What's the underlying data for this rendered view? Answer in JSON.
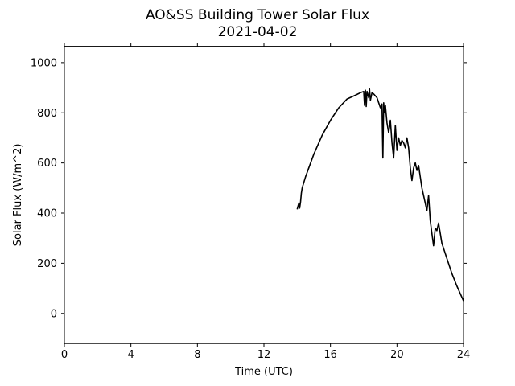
{
  "chart_data": {
    "type": "line",
    "title": "AO&SS Building Tower Solar Flux",
    "subtitle": "2021-04-02",
    "xlabel": "Time (UTC)",
    "ylabel": "Solar Flux (W/m^2)",
    "xlim": [
      0,
      24
    ],
    "ylim": [
      -120,
      1065
    ],
    "x_ticks": [
      0,
      4,
      8,
      12,
      16,
      20,
      24
    ],
    "x_tick_labels": [
      "0",
      "4",
      "8",
      "12",
      "16",
      "20",
      "24"
    ],
    "y_ticks": [
      0,
      200,
      400,
      600,
      800,
      1000
    ],
    "y_tick_labels": [
      "0",
      "200",
      "400",
      "600",
      "800",
      "1000"
    ],
    "grid": false,
    "line_color": "#000000",
    "series": [
      {
        "x": [
          14.0,
          14.1,
          14.15,
          14.2,
          14.25,
          14.3,
          14.5,
          15.0,
          15.5,
          16.0,
          16.5,
          17.0,
          17.5,
          17.8,
          18.0,
          18.05,
          18.1,
          18.15,
          18.2,
          18.3,
          18.35,
          18.4,
          18.5,
          18.6,
          18.8,
          18.9,
          19.0,
          19.1,
          19.15,
          19.2,
          19.25,
          19.3,
          19.4,
          19.5,
          19.6,
          19.7,
          19.8,
          19.9,
          20.0,
          20.1,
          20.2,
          20.3,
          20.4,
          20.5,
          20.6,
          20.7,
          20.8,
          20.9,
          21.0,
          21.1,
          21.2,
          21.3,
          21.5,
          21.6,
          21.8,
          21.9,
          22.0,
          22.1,
          22.2,
          22.3,
          22.4,
          22.5,
          22.6,
          22.7,
          23.0,
          23.3,
          23.6,
          24.0
        ],
        "y": [
          415,
          440,
          420,
          445,
          480,
          500,
          545,
          635,
          710,
          770,
          820,
          855,
          870,
          880,
          885,
          830,
          890,
          825,
          885,
          860,
          895,
          850,
          880,
          875,
          860,
          840,
          820,
          835,
          620,
          840,
          800,
          830,
          760,
          720,
          770,
          680,
          620,
          750,
          650,
          700,
          670,
          690,
          680,
          660,
          700,
          660,
          580,
          530,
          580,
          600,
          570,
          590,
          500,
          470,
          410,
          470,
          370,
          320,
          270,
          340,
          330,
          360,
          320,
          280,
          220,
          160,
          110,
          50
        ]
      }
    ]
  }
}
